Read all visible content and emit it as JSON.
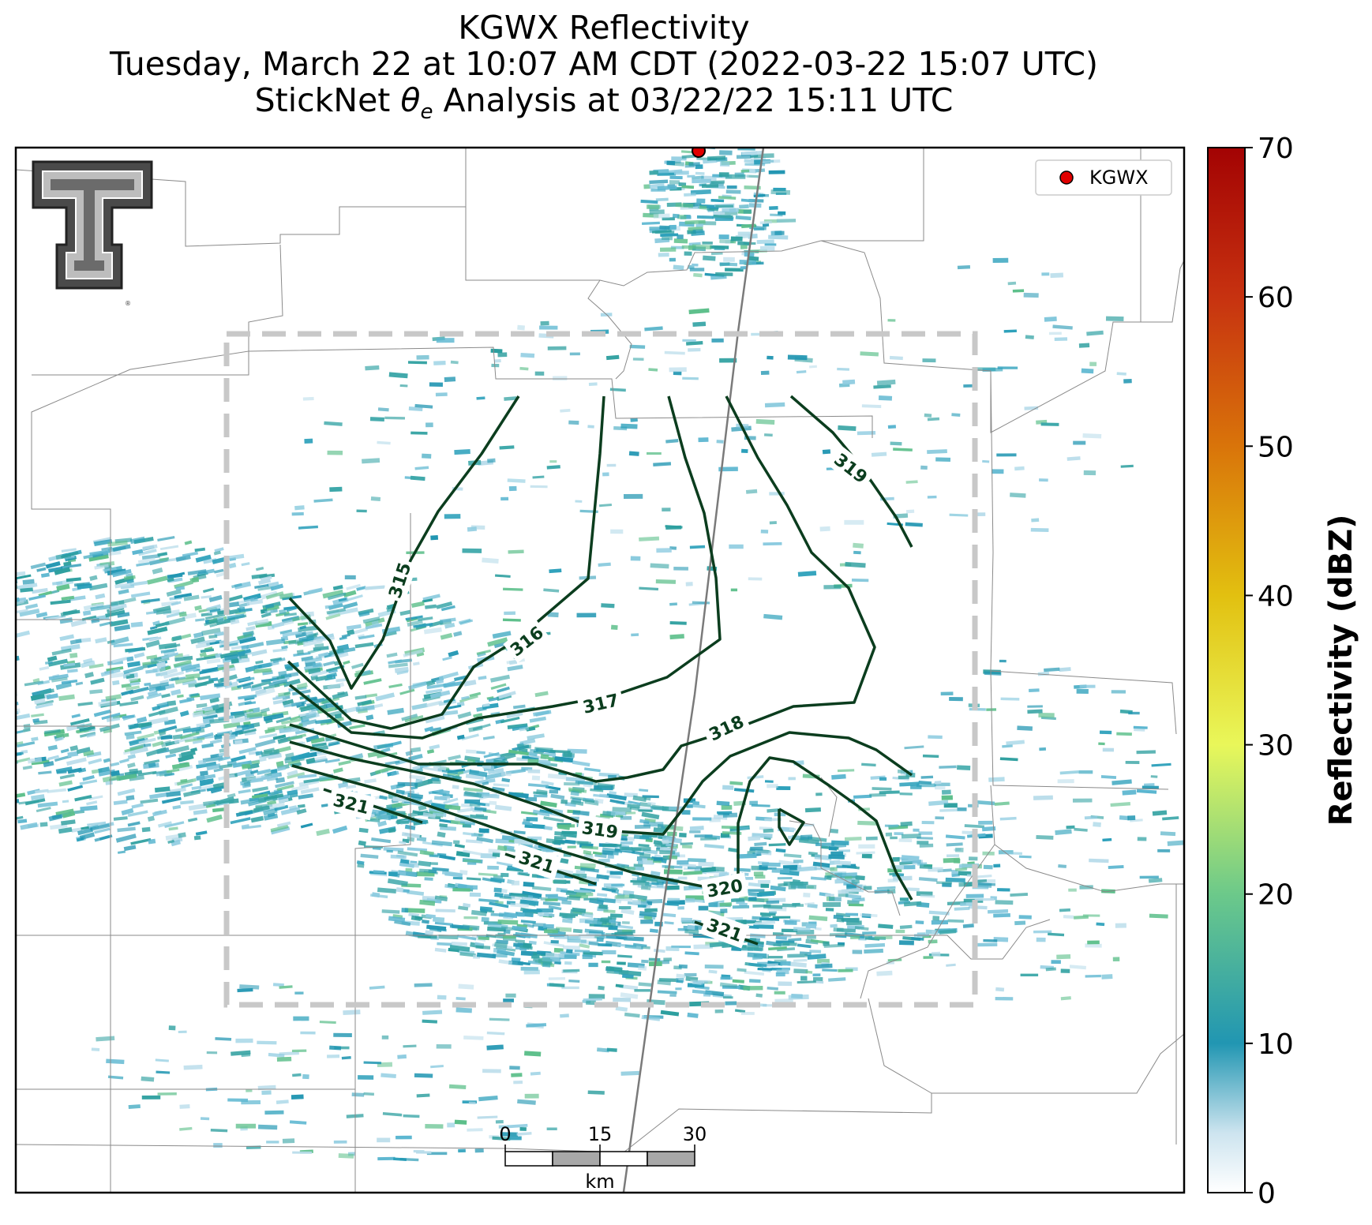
{
  "title": {
    "line1": "KGWX Reflectivity",
    "line2": "Tuesday, March 22 at 10:07 AM CDT (2022-03-22 15:07 UTC)",
    "line3_prefix": "StickNet ",
    "line3_symbol": "θ",
    "line3_subscript": "e",
    "line3_suffix": " Analysis at 03/22/22 15:11 UTC"
  },
  "legend": {
    "label": "KGWX",
    "marker_color": "#e00000"
  },
  "colorbar": {
    "label": "Reflectivity (dBZ)",
    "min": 0,
    "max": 70,
    "ticks": [
      "0",
      "10",
      "20",
      "30",
      "40",
      "50",
      "60",
      "70"
    ],
    "stops": [
      {
        "v": 0,
        "c": "#ffffff"
      },
      {
        "v": 4,
        "c": "#cde4ef"
      },
      {
        "v": 10,
        "c": "#2196b2"
      },
      {
        "v": 20,
        "c": "#6cc98a"
      },
      {
        "v": 30,
        "c": "#e9f75a"
      },
      {
        "v": 40,
        "c": "#e2c010"
      },
      {
        "v": 50,
        "c": "#d9740a"
      },
      {
        "v": 60,
        "c": "#c73210"
      },
      {
        "v": 70,
        "c": "#a30303"
      }
    ]
  },
  "scale_bar": {
    "ticks": [
      "0",
      "15",
      "30"
    ],
    "unit": "km"
  },
  "contours": [
    {
      "value": "315"
    },
    {
      "value": "316"
    },
    {
      "value": "317"
    },
    {
      "value": "318"
    },
    {
      "value": "319"
    },
    {
      "value": "319"
    },
    {
      "value": "320"
    },
    {
      "value": "321"
    },
    {
      "value": "321"
    },
    {
      "value": "321"
    }
  ],
  "colors": {
    "contour": "#0b3d1e",
    "analysis_box": "#c8c8c8",
    "county_lines": "#8a8a8a",
    "reflectivity_low": "#2196b2"
  }
}
